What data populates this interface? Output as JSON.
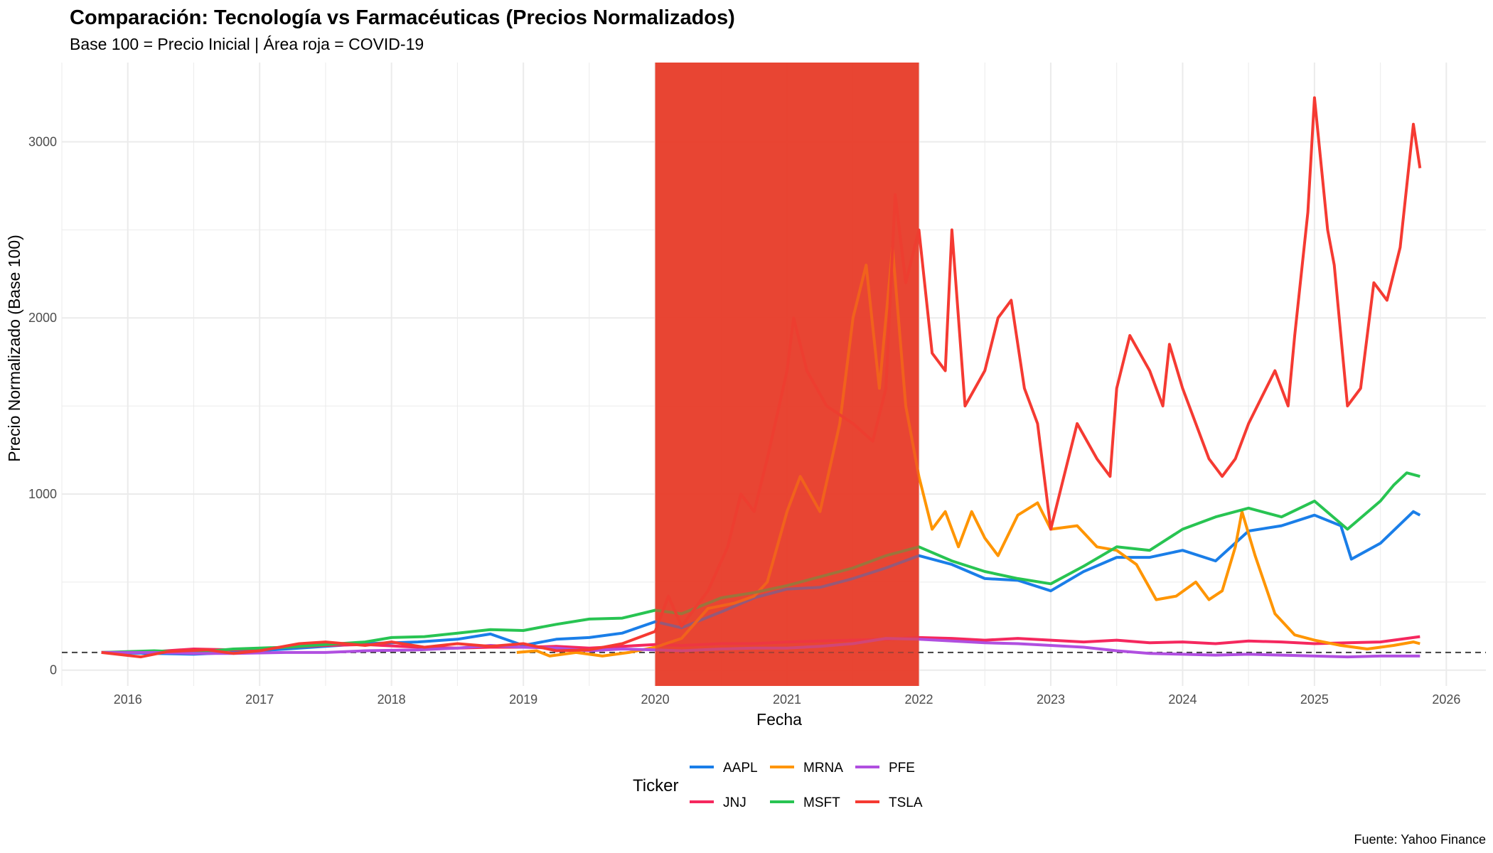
{
  "chart_data": {
    "type": "line",
    "title": "Comparación: Tecnología vs Farmacéuticas (Precios Normalizados)",
    "subtitle": "Base 100 = Precio Inicial | Área roja = COVID-19",
    "xlabel": "Fecha",
    "ylabel": "Precio Normalizado (Base 100)",
    "caption": "Fuente: Yahoo Finance",
    "legend_title": "Ticker",
    "legend_position": "bottom",
    "grid": true,
    "x_ticks": [
      "2016",
      "2017",
      "2018",
      "2019",
      "2020",
      "2021",
      "2022",
      "2023",
      "2024",
      "2025",
      "2026"
    ],
    "y_ticks": [
      0,
      1000,
      2000,
      3000
    ],
    "xlim": [
      2015.5,
      2026.3
    ],
    "ylim": [
      -90,
      3450
    ],
    "reference_line": {
      "y": 100,
      "style": "dashed"
    },
    "shaded_region": {
      "label": "COVID-19",
      "x_start": 2020.0,
      "x_end": 2022.0,
      "color": "#e8412f"
    },
    "series": [
      {
        "name": "AAPL",
        "color": "#1a7ee8",
        "points": [
          [
            2015.8,
            100
          ],
          [
            2016.2,
            95
          ],
          [
            2016.5,
            90
          ],
          [
            2016.8,
            100
          ],
          [
            2017.2,
            120
          ],
          [
            2017.5,
            135
          ],
          [
            2017.8,
            150
          ],
          [
            2018.2,
            160
          ],
          [
            2018.5,
            175
          ],
          [
            2018.75,
            205
          ],
          [
            2019.0,
            140
          ],
          [
            2019.25,
            175
          ],
          [
            2019.5,
            185
          ],
          [
            2019.75,
            210
          ],
          [
            2020.0,
            275
          ],
          [
            2020.2,
            240
          ],
          [
            2020.5,
            330
          ],
          [
            2020.75,
            410
          ],
          [
            2021.0,
            460
          ],
          [
            2021.25,
            470
          ],
          [
            2021.5,
            520
          ],
          [
            2021.75,
            580
          ],
          [
            2022.0,
            650
          ],
          [
            2022.25,
            600
          ],
          [
            2022.5,
            520
          ],
          [
            2022.75,
            510
          ],
          [
            2023.0,
            450
          ],
          [
            2023.25,
            560
          ],
          [
            2023.5,
            640
          ],
          [
            2023.75,
            640
          ],
          [
            2024.0,
            680
          ],
          [
            2024.25,
            620
          ],
          [
            2024.5,
            790
          ],
          [
            2024.75,
            820
          ],
          [
            2025.0,
            880
          ],
          [
            2025.2,
            820
          ],
          [
            2025.28,
            630
          ],
          [
            2025.5,
            720
          ],
          [
            2025.75,
            900
          ],
          [
            2025.8,
            880
          ]
        ]
      },
      {
        "name": "JNJ",
        "color": "#f5285e",
        "points": [
          [
            2015.8,
            100
          ],
          [
            2016.2,
            105
          ],
          [
            2016.5,
            120
          ],
          [
            2016.8,
            115
          ],
          [
            2017.2,
            130
          ],
          [
            2017.5,
            140
          ],
          [
            2017.8,
            145
          ],
          [
            2018.2,
            130
          ],
          [
            2018.5,
            125
          ],
          [
            2018.75,
            130
          ],
          [
            2019.0,
            130
          ],
          [
            2019.25,
            135
          ],
          [
            2019.5,
            125
          ],
          [
            2019.75,
            135
          ],
          [
            2020.0,
            145
          ],
          [
            2020.2,
            140
          ],
          [
            2020.5,
            150
          ],
          [
            2020.75,
            150
          ],
          [
            2021.0,
            160
          ],
          [
            2021.25,
            165
          ],
          [
            2021.5,
            170
          ],
          [
            2021.75,
            175
          ],
          [
            2022.0,
            185
          ],
          [
            2022.25,
            180
          ],
          [
            2022.5,
            170
          ],
          [
            2022.75,
            180
          ],
          [
            2023.0,
            170
          ],
          [
            2023.25,
            160
          ],
          [
            2023.5,
            170
          ],
          [
            2023.75,
            155
          ],
          [
            2024.0,
            160
          ],
          [
            2024.25,
            150
          ],
          [
            2024.5,
            165
          ],
          [
            2024.75,
            160
          ],
          [
            2025.0,
            150
          ],
          [
            2025.25,
            155
          ],
          [
            2025.5,
            160
          ],
          [
            2025.75,
            185
          ],
          [
            2025.8,
            190
          ]
        ]
      },
      {
        "name": "MRNA",
        "color": "#ff9500",
        "points": [
          [
            2018.95,
            100
          ],
          [
            2019.1,
            110
          ],
          [
            2019.2,
            80
          ],
          [
            2019.4,
            100
          ],
          [
            2019.6,
            80
          ],
          [
            2019.8,
            100
          ],
          [
            2020.0,
            130
          ],
          [
            2020.2,
            180
          ],
          [
            2020.4,
            350
          ],
          [
            2020.6,
            380
          ],
          [
            2020.75,
            420
          ],
          [
            2020.85,
            500
          ],
          [
            2021.0,
            900
          ],
          [
            2021.1,
            1100
          ],
          [
            2021.25,
            900
          ],
          [
            2021.4,
            1400
          ],
          [
            2021.5,
            2000
          ],
          [
            2021.6,
            2300
          ],
          [
            2021.7,
            1600
          ],
          [
            2021.8,
            2400
          ],
          [
            2021.9,
            1500
          ],
          [
            2022.0,
            1100
          ],
          [
            2022.1,
            800
          ],
          [
            2022.2,
            900
          ],
          [
            2022.3,
            700
          ],
          [
            2022.4,
            900
          ],
          [
            2022.5,
            750
          ],
          [
            2022.6,
            650
          ],
          [
            2022.75,
            880
          ],
          [
            2022.9,
            950
          ],
          [
            2023.0,
            800
          ],
          [
            2023.2,
            820
          ],
          [
            2023.35,
            700
          ],
          [
            2023.5,
            680
          ],
          [
            2023.65,
            600
          ],
          [
            2023.8,
            400
          ],
          [
            2023.95,
            420
          ],
          [
            2024.1,
            500
          ],
          [
            2024.2,
            400
          ],
          [
            2024.3,
            450
          ],
          [
            2024.4,
            700
          ],
          [
            2024.45,
            900
          ],
          [
            2024.55,
            650
          ],
          [
            2024.7,
            320
          ],
          [
            2024.85,
            200
          ],
          [
            2025.0,
            170
          ],
          [
            2025.2,
            140
          ],
          [
            2025.4,
            120
          ],
          [
            2025.6,
            140
          ],
          [
            2025.75,
            160
          ],
          [
            2025.8,
            150
          ]
        ]
      },
      {
        "name": "MSFT",
        "color": "#28c452",
        "points": [
          [
            2015.8,
            100
          ],
          [
            2016.2,
            110
          ],
          [
            2016.5,
            100
          ],
          [
            2016.8,
            120
          ],
          [
            2017.2,
            130
          ],
          [
            2017.5,
            145
          ],
          [
            2017.8,
            160
          ],
          [
            2018.0,
            185
          ],
          [
            2018.25,
            190
          ],
          [
            2018.5,
            210
          ],
          [
            2018.75,
            230
          ],
          [
            2019.0,
            225
          ],
          [
            2019.25,
            260
          ],
          [
            2019.5,
            290
          ],
          [
            2019.75,
            295
          ],
          [
            2020.0,
            340
          ],
          [
            2020.2,
            320
          ],
          [
            2020.5,
            410
          ],
          [
            2020.75,
            440
          ],
          [
            2021.0,
            480
          ],
          [
            2021.25,
            530
          ],
          [
            2021.5,
            580
          ],
          [
            2021.75,
            650
          ],
          [
            2022.0,
            700
          ],
          [
            2022.25,
            620
          ],
          [
            2022.5,
            560
          ],
          [
            2022.75,
            520
          ],
          [
            2023.0,
            490
          ],
          [
            2023.25,
            590
          ],
          [
            2023.5,
            700
          ],
          [
            2023.75,
            680
          ],
          [
            2024.0,
            800
          ],
          [
            2024.25,
            870
          ],
          [
            2024.5,
            920
          ],
          [
            2024.75,
            870
          ],
          [
            2025.0,
            960
          ],
          [
            2025.25,
            800
          ],
          [
            2025.5,
            960
          ],
          [
            2025.6,
            1050
          ],
          [
            2025.7,
            1120
          ],
          [
            2025.8,
            1100
          ]
        ]
      },
      {
        "name": "PFE",
        "color": "#b04fe0",
        "points": [
          [
            2015.8,
            100
          ],
          [
            2016.2,
            100
          ],
          [
            2016.5,
            95
          ],
          [
            2016.8,
            95
          ],
          [
            2017.2,
            100
          ],
          [
            2017.5,
            100
          ],
          [
            2017.8,
            110
          ],
          [
            2018.2,
            115
          ],
          [
            2018.5,
            125
          ],
          [
            2018.75,
            140
          ],
          [
            2019.0,
            130
          ],
          [
            2019.25,
            125
          ],
          [
            2019.5,
            110
          ],
          [
            2019.75,
            120
          ],
          [
            2020.0,
            115
          ],
          [
            2020.2,
            110
          ],
          [
            2020.5,
            120
          ],
          [
            2020.75,
            125
          ],
          [
            2021.0,
            125
          ],
          [
            2021.25,
            135
          ],
          [
            2021.5,
            150
          ],
          [
            2021.75,
            180
          ],
          [
            2022.0,
            175
          ],
          [
            2022.25,
            165
          ],
          [
            2022.5,
            155
          ],
          [
            2022.75,
            150
          ],
          [
            2023.0,
            140
          ],
          [
            2023.25,
            130
          ],
          [
            2023.5,
            110
          ],
          [
            2023.75,
            95
          ],
          [
            2024.0,
            90
          ],
          [
            2024.25,
            85
          ],
          [
            2024.5,
            90
          ],
          [
            2024.75,
            85
          ],
          [
            2025.0,
            80
          ],
          [
            2025.25,
            75
          ],
          [
            2025.5,
            80
          ],
          [
            2025.75,
            80
          ],
          [
            2025.8,
            80
          ]
        ]
      },
      {
        "name": "TSLA",
        "color": "#f53a32",
        "points": [
          [
            2015.8,
            100
          ],
          [
            2016.1,
            75
          ],
          [
            2016.3,
            105
          ],
          [
            2016.6,
            115
          ],
          [
            2016.8,
            95
          ],
          [
            2017.0,
            110
          ],
          [
            2017.3,
            150
          ],
          [
            2017.5,
            160
          ],
          [
            2017.8,
            140
          ],
          [
            2018.0,
            160
          ],
          [
            2018.25,
            130
          ],
          [
            2018.5,
            150
          ],
          [
            2018.75,
            135
          ],
          [
            2019.0,
            150
          ],
          [
            2019.25,
            110
          ],
          [
            2019.5,
            115
          ],
          [
            2019.75,
            150
          ],
          [
            2020.0,
            220
          ],
          [
            2020.1,
            420
          ],
          [
            2020.2,
            250
          ],
          [
            2020.4,
            450
          ],
          [
            2020.55,
            700
          ],
          [
            2020.65,
            1000
          ],
          [
            2020.75,
            900
          ],
          [
            2020.85,
            1200
          ],
          [
            2021.0,
            1700
          ],
          [
            2021.05,
            2000
          ],
          [
            2021.15,
            1700
          ],
          [
            2021.3,
            1500
          ],
          [
            2021.5,
            1400
          ],
          [
            2021.65,
            1300
          ],
          [
            2021.75,
            1600
          ],
          [
            2021.82,
            2700
          ],
          [
            2021.9,
            2200
          ],
          [
            2022.0,
            2500
          ],
          [
            2022.1,
            1800
          ],
          [
            2022.2,
            1700
          ],
          [
            2022.25,
            2500
          ],
          [
            2022.35,
            1500
          ],
          [
            2022.5,
            1700
          ],
          [
            2022.6,
            2000
          ],
          [
            2022.7,
            2100
          ],
          [
            2022.8,
            1600
          ],
          [
            2022.9,
            1400
          ],
          [
            2022.95,
            1100
          ],
          [
            2023.0,
            800
          ],
          [
            2023.1,
            1100
          ],
          [
            2023.2,
            1400
          ],
          [
            2023.35,
            1200
          ],
          [
            2023.45,
            1100
          ],
          [
            2023.5,
            1600
          ],
          [
            2023.6,
            1900
          ],
          [
            2023.75,
            1700
          ],
          [
            2023.85,
            1500
          ],
          [
            2023.9,
            1850
          ],
          [
            2024.0,
            1600
          ],
          [
            2024.1,
            1400
          ],
          [
            2024.2,
            1200
          ],
          [
            2024.3,
            1100
          ],
          [
            2024.4,
            1200
          ],
          [
            2024.5,
            1400
          ],
          [
            2024.6,
            1550
          ],
          [
            2024.7,
            1700
          ],
          [
            2024.8,
            1500
          ],
          [
            2024.85,
            1900
          ],
          [
            2024.95,
            2600
          ],
          [
            2025.0,
            3250
          ],
          [
            2025.1,
            2500
          ],
          [
            2025.15,
            2300
          ],
          [
            2025.25,
            1500
          ],
          [
            2025.35,
            1600
          ],
          [
            2025.45,
            2200
          ],
          [
            2025.55,
            2100
          ],
          [
            2025.65,
            2400
          ],
          [
            2025.75,
            3100
          ],
          [
            2025.8,
            2850
          ]
        ]
      }
    ]
  }
}
